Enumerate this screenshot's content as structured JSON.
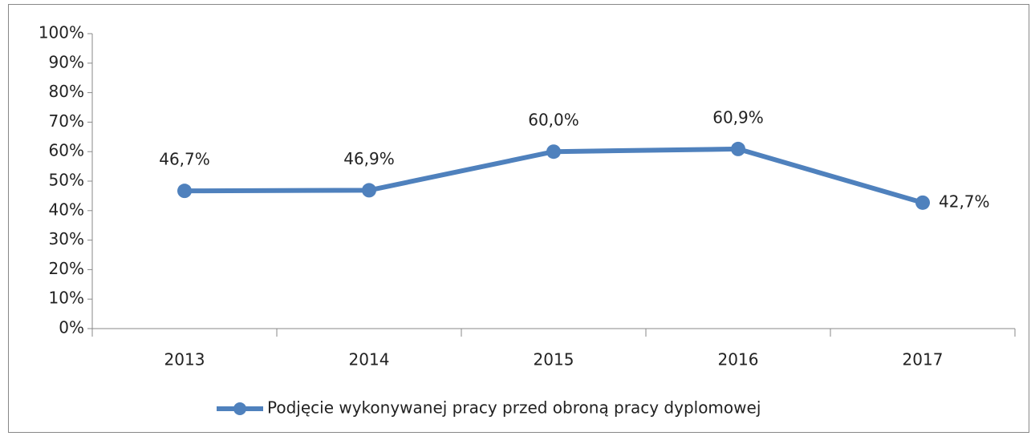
{
  "chart_data": {
    "type": "line",
    "categories": [
      "2013",
      "2014",
      "2015",
      "2016",
      "2017"
    ],
    "series": [
      {
        "name": "Podjęcie wykonywanej pracy przed obroną pracy dyplomowej",
        "color": "#4f81bd",
        "values": [
          46.7,
          46.9,
          60.0,
          60.9,
          42.7
        ],
        "value_labels": [
          "46,7%",
          "46,9%",
          "60,0%",
          "60,9%",
          "42,7%"
        ]
      }
    ],
    "ylim": [
      0,
      100
    ],
    "yticks": [
      {
        "value": 0,
        "label": "0%"
      },
      {
        "value": 10,
        "label": "10%"
      },
      {
        "value": 20,
        "label": "20%"
      },
      {
        "value": 30,
        "label": "30%"
      },
      {
        "value": 40,
        "label": "40%"
      },
      {
        "value": 50,
        "label": "50%"
      },
      {
        "value": 60,
        "label": "60%"
      },
      {
        "value": 70,
        "label": "70%"
      },
      {
        "value": 80,
        "label": "80%"
      },
      {
        "value": 90,
        "label": "90%"
      },
      {
        "value": 100,
        "label": "100%"
      }
    ],
    "grid": false,
    "legend": "bottom"
  }
}
